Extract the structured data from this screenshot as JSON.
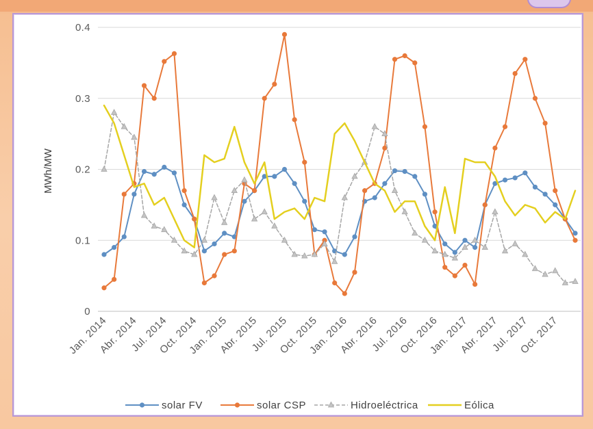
{
  "chart_data": {
    "type": "line",
    "ylabel": "MWh/MW",
    "ylim": [
      0,
      0.4
    ],
    "grid": true,
    "legend": "bottom",
    "y_ticks": [
      0,
      0.1,
      0.2,
      0.3,
      0.4
    ],
    "y_tick_labels": [
      "0",
      "0.1",
      "0.2",
      "0.3",
      "0.4"
    ],
    "x": [
      0,
      1,
      2,
      3,
      4,
      5,
      6,
      7,
      8,
      9,
      10,
      11,
      12,
      13,
      14,
      15,
      16,
      17,
      18,
      19,
      20,
      21,
      22,
      23,
      24,
      25,
      26,
      27,
      28,
      29,
      30,
      31,
      32,
      33,
      34,
      35,
      36,
      37,
      38,
      39,
      40,
      41,
      42,
      43,
      44,
      45,
      46,
      47
    ],
    "x_ticks": [
      0,
      3,
      6,
      9,
      12,
      15,
      18,
      21,
      24,
      27,
      30,
      33,
      36,
      39,
      42,
      45
    ],
    "x_tick_labels": [
      "Jan. 2014",
      "Abr. 2014",
      "Jul. 2014",
      "Oct. 2014",
      "Jan. 2015",
      "Abr. 2015",
      "Jul. 2015",
      "Oct. 2015",
      "Jan. 2016",
      "Abr. 2016",
      "Jul. 2016",
      "Oct. 2016",
      "Jan. 2017",
      "Abr. 2017",
      "Jul. 2017",
      "Oct. 2017"
    ],
    "series": [
      {
        "name": "solar FV",
        "color": "#5e8fc3",
        "values": [
          0.08,
          0.09,
          0.105,
          0.165,
          0.197,
          0.193,
          0.203,
          0.195,
          0.15,
          0.13,
          0.085,
          0.095,
          0.11,
          0.105,
          0.155,
          0.17,
          0.19,
          0.19,
          0.2,
          0.18,
          0.155,
          0.115,
          0.112,
          0.085,
          0.08,
          0.105,
          0.155,
          0.16,
          0.18,
          0.198,
          0.197,
          0.19,
          0.165,
          0.12,
          0.095,
          0.083,
          0.1,
          0.09,
          0.15,
          0.18,
          0.185,
          0.188,
          0.195,
          0.175,
          0.165,
          0.15,
          0.13,
          0.11
        ]
      },
      {
        "name": "solar CSP",
        "color": "#e8793a",
        "values": [
          0.033,
          0.045,
          0.165,
          0.18,
          0.318,
          0.3,
          0.352,
          0.363,
          0.17,
          0.13,
          0.04,
          0.05,
          0.08,
          0.085,
          0.18,
          0.17,
          0.3,
          0.32,
          0.39,
          0.27,
          0.21,
          0.08,
          0.1,
          0.04,
          0.025,
          0.055,
          0.17,
          0.18,
          0.23,
          0.355,
          0.36,
          0.35,
          0.26,
          0.14,
          0.062,
          0.05,
          0.065,
          0.038,
          0.15,
          0.23,
          0.26,
          0.335,
          0.355,
          0.3,
          0.265,
          0.17,
          0.13,
          0.1
        ]
      },
      {
        "name": "Hidroeléctrica",
        "color": "#a6a6a6",
        "values": [
          0.2,
          0.28,
          0.26,
          0.245,
          0.135,
          0.12,
          0.115,
          0.1,
          0.085,
          0.08,
          0.1,
          0.16,
          0.125,
          0.17,
          0.185,
          0.13,
          0.14,
          0.12,
          0.1,
          0.08,
          0.078,
          0.08,
          0.095,
          0.07,
          0.16,
          0.19,
          0.21,
          0.26,
          0.25,
          0.17,
          0.14,
          0.11,
          0.1,
          0.085,
          0.08,
          0.075,
          0.09,
          0.1,
          0.09,
          0.14,
          0.085,
          0.095,
          0.08,
          0.06,
          0.052,
          0.057,
          0.04,
          0.042
        ]
      },
      {
        "name": "Eólica",
        "color": "#e4cf1f",
        "values": [
          0.29,
          0.265,
          0.22,
          0.175,
          0.18,
          0.15,
          0.16,
          0.13,
          0.1,
          0.09,
          0.22,
          0.21,
          0.215,
          0.26,
          0.21,
          0.18,
          0.21,
          0.13,
          0.14,
          0.145,
          0.13,
          0.16,
          0.155,
          0.25,
          0.265,
          0.24,
          0.21,
          0.18,
          0.17,
          0.14,
          0.155,
          0.155,
          0.12,
          0.1,
          0.175,
          0.11,
          0.215,
          0.21,
          0.21,
          0.19,
          0.155,
          0.135,
          0.15,
          0.145,
          0.125,
          0.14,
          0.13,
          0.17
        ]
      }
    ]
  }
}
